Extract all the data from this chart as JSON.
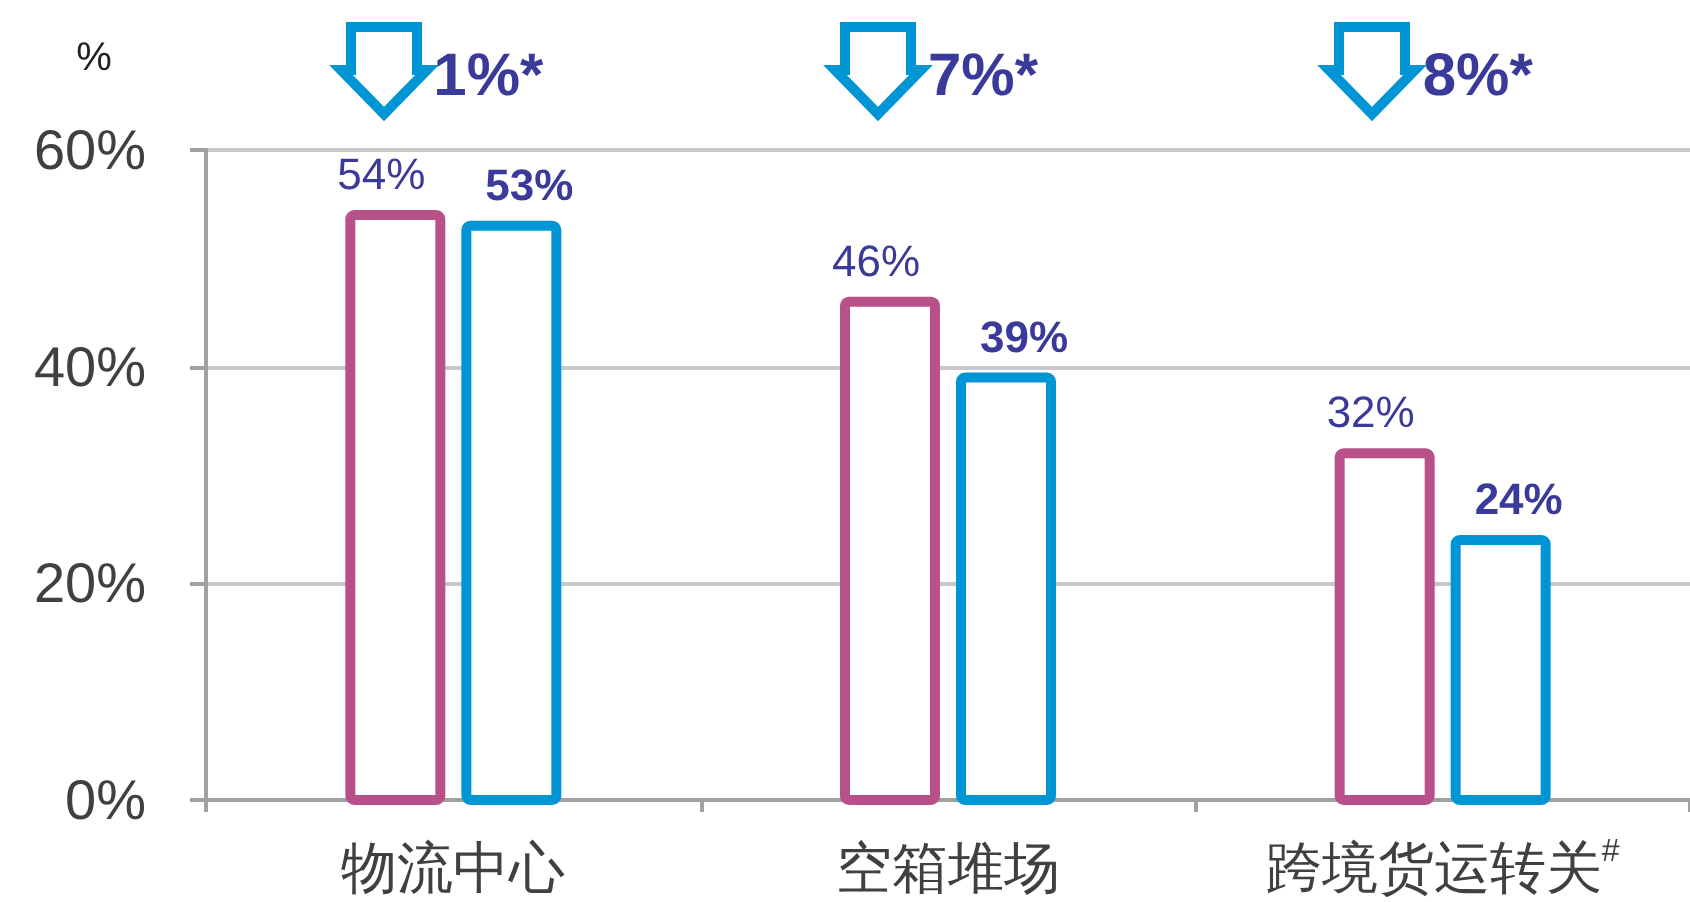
{
  "chart_data": {
    "type": "bar",
    "ylabel": "%",
    "categories": [
      "物流中心",
      "空箱堆场",
      "跨境货运转关$^{#}$"
    ],
    "series": [
      {
        "color": "#b8508a",
        "values": [
          54,
          46,
          32
        ],
        "value_labels": [
          "54%",
          "46%",
          "32%"
        ]
      },
      {
        "color": "#0096d6",
        "values": [
          53,
          39,
          24
        ],
        "value_labels": [
          "53%",
          "39%",
          "24%"
        ]
      }
    ],
    "ylim": [
      0,
      60
    ],
    "yticks": [
      {
        "value": 0,
        "label": "0%"
      },
      {
        "value": 20,
        "label": "20%"
      },
      {
        "value": 40,
        "label": "40%"
      },
      {
        "value": 60,
        "label": "60%"
      }
    ],
    "grid": "y",
    "annotations": [
      "1%*",
      "7%*",
      "8%*"
    ]
  }
}
